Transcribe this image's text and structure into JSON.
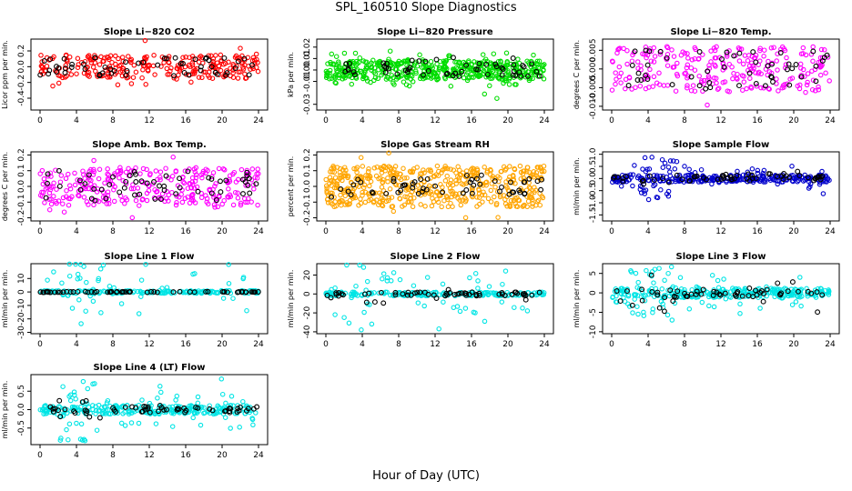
{
  "figure": {
    "title": "SPL_160510  Slope Diagnostics",
    "xlabel": "Hour of Day (UTC)"
  },
  "chart_data": [
    {
      "type": "scatter",
      "title": "Slope Li−820 CO2",
      "ylabel": "Licor ppm per min.",
      "xticks": [
        "0",
        "4",
        "8",
        "12",
        "16",
        "20",
        "24"
      ],
      "yticks": [
        "-0.4",
        "-0.2",
        "0.0",
        "0.2"
      ],
      "xlim": [
        0,
        24
      ],
      "ylim": [
        -0.55,
        0.35
      ],
      "grid": false,
      "series": [
        {
          "color": "#ff0000",
          "band": [
            -0.15,
            0.15
          ],
          "spread": 0.42,
          "n": 260
        },
        {
          "color": "#000000",
          "band": [
            -0.12,
            0.12
          ],
          "spread": 0.2,
          "n": 55
        }
      ]
    },
    {
      "type": "scatter",
      "title": "Slope Li−820 Pressure",
      "ylabel": "kPa per min.",
      "xticks": [
        "0",
        "4",
        "8",
        "12",
        "16",
        "20",
        "24"
      ],
      "yticks": [
        "-0.03",
        "-0.01",
        "0.00",
        "0.01",
        "0.02"
      ],
      "xlim": [
        0,
        24
      ],
      "ylim": [
        -0.035,
        0.027
      ],
      "grid": false,
      "series": [
        {
          "color": "#00dd00",
          "band": [
            -0.008,
            0.008
          ],
          "spread": 0.025,
          "n": 500
        },
        {
          "color": "#000000",
          "band": [
            -0.006,
            0.012
          ],
          "spread": 0.01,
          "n": 55
        }
      ]
    },
    {
      "type": "scatter",
      "title": "Slope Li−820 Temp.",
      "ylabel": "degrees C per min.",
      "xticks": [
        "0",
        "4",
        "8",
        "12",
        "16",
        "20",
        "24"
      ],
      "yticks": [
        "-0.010",
        "-0.005",
        "0.000",
        "0.005"
      ],
      "xlim": [
        0,
        24
      ],
      "ylim": [
        -0.011,
        0.008
      ],
      "grid": false,
      "series": [
        {
          "color": "#ff00ff",
          "band": [
            -0.006,
            0.006
          ],
          "spread": 0.01,
          "n": 260
        },
        {
          "color": "#000000",
          "band": [
            -0.005,
            0.005
          ],
          "spread": 0.006,
          "n": 50
        }
      ]
    },
    {
      "type": "scatter",
      "title": "Slope Amb. Box Temp.",
      "ylabel": "degrees C per min.",
      "xticks": [
        "0",
        "4",
        "8",
        "12",
        "16",
        "20",
        "24"
      ],
      "yticks": [
        "-0.2",
        "-0.1",
        "0.0",
        "0.1",
        "0.2"
      ],
      "xlim": [
        0,
        24
      ],
      "ylim": [
        -0.22,
        0.22
      ],
      "grid": false,
      "series": [
        {
          "color": "#ff00ff",
          "band": [
            -0.12,
            0.12
          ],
          "spread": 0.22,
          "n": 300
        },
        {
          "color": "#000000",
          "band": [
            -0.1,
            0.1
          ],
          "spread": 0.16,
          "n": 55
        }
      ]
    },
    {
      "type": "scatter",
      "title": "Slope Gas Stream RH",
      "ylabel": "percent per min.",
      "xticks": [
        "0",
        "4",
        "8",
        "12",
        "16",
        "20",
        "24"
      ],
      "yticks": [
        "-0.2",
        "-0.1",
        "0.0",
        "0.1",
        "0.2"
      ],
      "xlim": [
        0,
        24
      ],
      "ylim": [
        -0.22,
        0.22
      ],
      "grid": false,
      "series": [
        {
          "color": "#ffa500",
          "band": [
            -0.13,
            0.13
          ],
          "spread": 0.22,
          "n": 500
        },
        {
          "color": "#000000",
          "band": [
            -0.05,
            0.05
          ],
          "spread": 0.12,
          "n": 55
        }
      ]
    },
    {
      "type": "scatter",
      "title": "Slope Sample Flow",
      "ylabel": "ml/min per min.",
      "xticks": [
        "0",
        "4",
        "8",
        "12",
        "16",
        "20",
        "24"
      ],
      "yticks": [
        "-1.5",
        "-1.0",
        "-0.5",
        "0.0",
        "0.5",
        "1.0"
      ],
      "xlim": [
        0,
        24
      ],
      "ylim": [
        -1.75,
        1.1
      ],
      "grid": false,
      "series": [
        {
          "color": "#0000cc",
          "band": [
            -0.15,
            0.15
          ],
          "spread": 0.9,
          "n": 320
        },
        {
          "color": "#000000",
          "band": [
            -0.1,
            0.2
          ],
          "spread": 0.3,
          "n": 60
        }
      ]
    },
    {
      "type": "scatter",
      "title": "Slope Line 1 Flow",
      "ylabel": "ml/min per min.",
      "xticks": [
        "0",
        "4",
        "8",
        "12",
        "16",
        "20",
        "24"
      ],
      "yticks": [
        "-30",
        "-20",
        "-10",
        "0",
        "10"
      ],
      "xlim": [
        0,
        24
      ],
      "ylim": [
        -31,
        21
      ],
      "grid": false,
      "series": [
        {
          "color": "#00e5e5",
          "band": [
            -1,
            1
          ],
          "spread": 26,
          "n": 220
        },
        {
          "color": "#000000",
          "band": [
            -0.3,
            0.3
          ],
          "spread": 0.5,
          "n": 60
        }
      ]
    },
    {
      "type": "scatter",
      "title": "Slope Line 2 Flow",
      "ylabel": "ml/min per min.",
      "xticks": [
        "0",
        "4",
        "8",
        "12",
        "16",
        "20",
        "24"
      ],
      "yticks": [
        "-40",
        "-20",
        "0",
        "20"
      ],
      "xlim": [
        0,
        24
      ],
      "ylim": [
        -42,
        32
      ],
      "grid": false,
      "series": [
        {
          "color": "#00e5e5",
          "band": [
            -2,
            2
          ],
          "spread": 38,
          "n": 240
        },
        {
          "color": "#000000",
          "band": [
            -2,
            2
          ],
          "spread": 10,
          "n": 60
        }
      ]
    },
    {
      "type": "scatter",
      "title": "Slope Line 3 Flow",
      "ylabel": "ml/min per min.",
      "xticks": [
        "0",
        "4",
        "8",
        "12",
        "16",
        "20",
        "24"
      ],
      "yticks": [
        "-10",
        "-5",
        "0",
        "5"
      ],
      "xlim": [
        0,
        24
      ],
      "ylim": [
        -10.5,
        7.5
      ],
      "grid": false,
      "series": [
        {
          "color": "#00e5e5",
          "band": [
            -1.2,
            1.2
          ],
          "spread": 7,
          "n": 320
        },
        {
          "color": "#000000",
          "band": [
            -1,
            1
          ],
          "spread": 5,
          "n": 60
        }
      ]
    },
    {
      "type": "scatter",
      "title": "Slope Line 4 (LT) Flow",
      "ylabel": "ml/min per min.",
      "xticks": [
        "0",
        "4",
        "8",
        "12",
        "16",
        "20",
        "24"
      ],
      "yticks": [
        "-0.5",
        "0.0",
        "0.5"
      ],
      "xlim": [
        0,
        24
      ],
      "ylim": [
        -0.95,
        0.95
      ],
      "grid": false,
      "series": [
        {
          "color": "#00e5e5",
          "band": [
            -0.12,
            0.12
          ],
          "spread": 0.85,
          "n": 320
        },
        {
          "color": "#000000",
          "band": [
            -0.08,
            0.08
          ],
          "spread": 0.25,
          "n": 60
        }
      ]
    }
  ]
}
